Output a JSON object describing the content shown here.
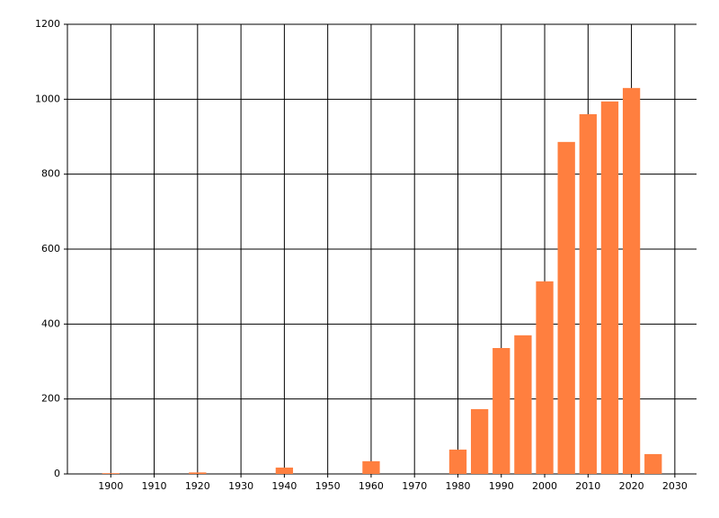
{
  "chart_data": {
    "type": "bar",
    "color": "#ff7f3f",
    "grid": true,
    "x": [
      1900,
      1920,
      1940,
      1960,
      1980,
      1985,
      1990,
      1995,
      2000,
      2005,
      2010,
      2015,
      2020,
      2025
    ],
    "values": [
      2,
      4,
      17,
      34,
      65,
      173,
      336,
      370,
      514,
      886,
      960,
      994,
      1030,
      53
    ],
    "bar_width": 4,
    "xlim": [
      1890,
      2035
    ],
    "xticks": [
      1900,
      1910,
      1920,
      1930,
      1940,
      1950,
      1960,
      1970,
      1980,
      1990,
      2000,
      2010,
      2020,
      2030
    ],
    "ylim": [
      0,
      1200
    ],
    "yticks": [
      0,
      200,
      400,
      600,
      800,
      1000,
      1200
    ]
  }
}
